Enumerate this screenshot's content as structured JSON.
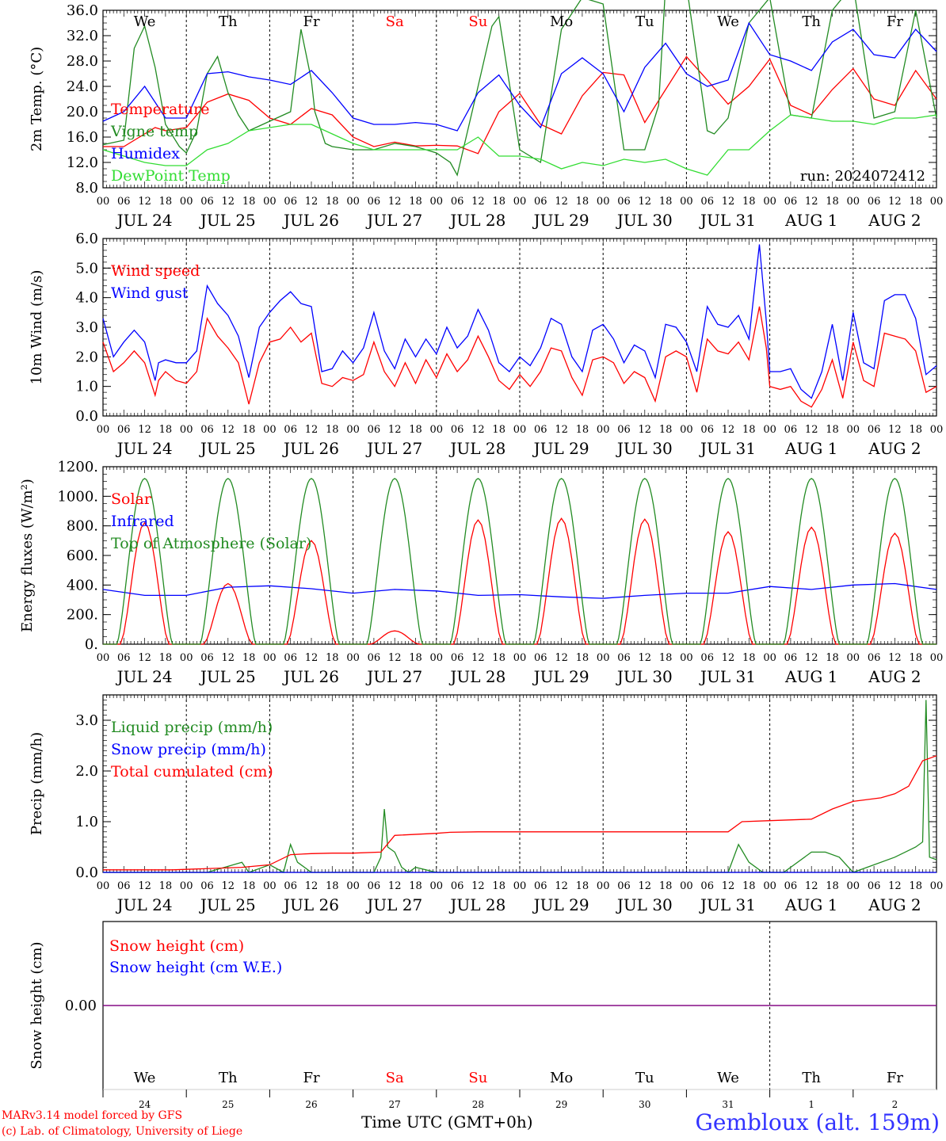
{
  "run_label": "run: 2024072412",
  "dates": [
    "JUL 24",
    "JUL 25",
    "JUL 26",
    "JUL 27",
    "JUL 28",
    "JUL 29",
    "JUL 30",
    "JUL 31",
    "AUG  1",
    "AUG  2"
  ],
  "weekdays": [
    "We",
    "Th",
    "Fr",
    "Sa",
    "Su",
    "Mo",
    "Tu",
    "We",
    "Th",
    "Fr"
  ],
  "weekday_colors": [
    "#000000",
    "#000000",
    "#000000",
    "#ff0000",
    "#ff0000",
    "#000000",
    "#000000",
    "#000000",
    "#000000",
    "#000000"
  ],
  "hour_ticks": [
    "00",
    "06",
    "12",
    "18"
  ],
  "bottom_day_numbers": [
    "24",
    "25",
    "26",
    "27",
    "28",
    "29",
    "30",
    "31",
    "1",
    "2"
  ],
  "footer": {
    "model": "MARv3.14 model forced by GFS",
    "lab": "(c) Lab. of Climatology, University of Liege",
    "x_title": "Time UTC (GMT+0h)",
    "station": "Gembloux (alt. 159m)"
  },
  "colors": {
    "red": "#ff0000",
    "green": "#228b22",
    "blue": "#0000ff",
    "lightgreen": "#33dd33",
    "purple": "#800080"
  },
  "chart_data": [
    {
      "type": "line",
      "ylabel": "2m Temp. (°C)",
      "ylim": [
        8,
        36
      ],
      "yticks": [
        "8.0",
        "12.0",
        "16.0",
        "20.0",
        "24.0",
        "28.0",
        "32.0",
        "36.0"
      ],
      "x_unit": "hours since 2024-07-24 00 UTC",
      "series": [
        {
          "name": "Temperature",
          "color": "red",
          "x": [
            0,
            6,
            12,
            15,
            18,
            24,
            30,
            36,
            42,
            48,
            54,
            60,
            66,
            72,
            78,
            84,
            90,
            96,
            102,
            108,
            114,
            120,
            126,
            132,
            138,
            144,
            150,
            156,
            162,
            168,
            174,
            180,
            186,
            192,
            198,
            204,
            210,
            216,
            222,
            228,
            234,
            240
          ],
          "values": [
            14.5,
            14.5,
            16.5,
            17.5,
            17,
            17.5,
            21.5,
            22.8,
            21.8,
            19,
            18,
            20.5,
            19.5,
            16,
            14.5,
            15.2,
            14.6,
            14.7,
            14.6,
            13.4,
            20,
            22.9,
            18,
            16.5,
            22.5,
            26.2,
            25.8,
            18.3,
            23.5,
            28.7,
            25,
            21.2,
            24,
            28.3,
            21,
            19.5,
            23.5,
            26.8,
            22,
            21,
            26.5,
            22
          ]
        },
        {
          "name": "Vigne temp",
          "color": "green",
          "x": [
            0,
            6,
            9,
            12,
            15,
            18,
            22,
            24,
            27,
            30,
            33,
            36,
            39,
            42,
            48,
            54,
            57,
            60,
            61,
            64,
            66,
            72,
            78,
            84,
            90,
            96,
            100,
            102,
            108,
            112,
            114,
            120,
            126,
            132,
            138,
            144,
            150,
            156,
            160,
            162,
            168,
            174,
            176,
            180,
            186,
            192,
            198,
            204,
            210,
            216,
            222,
            228,
            234,
            240
          ],
          "values": [
            14.8,
            15.5,
            30,
            33.5,
            27,
            18,
            14.5,
            13.5,
            17,
            26,
            28.7,
            23,
            19.5,
            17,
            18.5,
            20,
            33,
            25,
            20,
            15,
            14.5,
            14,
            14,
            15,
            14.5,
            13.5,
            12,
            10,
            24,
            33.5,
            35,
            14,
            12,
            33,
            38,
            37,
            14,
            14,
            21,
            40,
            40,
            17,
            16.5,
            19,
            34,
            38,
            19.5,
            19,
            36,
            40,
            19,
            20,
            36,
            19
          ]
        },
        {
          "name": "Humidex",
          "color": "blue",
          "x": [
            0,
            6,
            12,
            18,
            24,
            30,
            36,
            42,
            48,
            54,
            60,
            66,
            72,
            78,
            84,
            90,
            96,
            102,
            108,
            114,
            120,
            126,
            132,
            138,
            144,
            150,
            156,
            162,
            168,
            174,
            180,
            186,
            192,
            198,
            204,
            210,
            216,
            222,
            228,
            234,
            240
          ],
          "values": [
            18.5,
            20,
            24,
            19,
            19,
            26,
            26.3,
            25.5,
            25,
            24.3,
            26.5,
            23,
            19,
            18,
            18,
            18.3,
            18,
            17,
            23,
            25.8,
            21,
            17.5,
            26,
            28.5,
            26,
            20,
            27,
            30.8,
            26,
            24,
            25,
            34,
            29,
            28,
            26.5,
            31,
            33,
            29,
            28.5,
            33,
            29.5
          ]
        },
        {
          "name": "DewPoint Temp",
          "color": "lightgreen",
          "x": [
            0,
            6,
            12,
            18,
            24,
            30,
            36,
            42,
            48,
            54,
            60,
            66,
            72,
            78,
            84,
            90,
            96,
            102,
            108,
            114,
            120,
            126,
            132,
            138,
            144,
            150,
            156,
            162,
            168,
            174,
            180,
            186,
            192,
            198,
            204,
            210,
            216,
            222,
            228,
            234,
            240
          ],
          "values": [
            14,
            13,
            12,
            11.5,
            11.5,
            14,
            15,
            17,
            17.5,
            18,
            18,
            16.5,
            15,
            14,
            14,
            14,
            14,
            14,
            16,
            13,
            13,
            12.5,
            11,
            12,
            11.5,
            12.5,
            12,
            12.5,
            11,
            10,
            14,
            14,
            17,
            19.5,
            19,
            18.5,
            18.5,
            18,
            19,
            19,
            19.5
          ]
        }
      ]
    },
    {
      "type": "line",
      "ylabel": "10m Wind (m/s)",
      "ylim": [
        0,
        6
      ],
      "yticks": [
        "0.0",
        "1.0",
        "2.0",
        "3.0",
        "4.0",
        "5.0",
        "6.0"
      ],
      "x_unit": "hours since 2024-07-24 00 UTC",
      "series": [
        {
          "name": "Wind speed",
          "color": "red",
          "x": [
            0,
            3,
            6,
            9,
            12,
            15,
            16,
            18,
            21,
            24,
            27,
            30,
            33,
            36,
            39,
            42,
            45,
            48,
            51,
            54,
            57,
            60,
            63,
            66,
            69,
            72,
            75,
            78,
            81,
            84,
            87,
            90,
            93,
            96,
            99,
            102,
            105,
            108,
            111,
            114,
            117,
            120,
            123,
            126,
            129,
            132,
            135,
            138,
            141,
            144,
            147,
            150,
            153,
            156,
            159,
            162,
            165,
            168,
            171,
            174,
            177,
            180,
            183,
            186,
            189,
            191,
            192,
            195,
            198,
            201,
            204,
            207,
            210,
            213,
            216,
            219,
            222,
            225,
            228,
            231,
            234,
            237,
            240
          ],
          "values": [
            2.5,
            1.5,
            1.8,
            2.2,
            1.8,
            0.7,
            1.2,
            1.5,
            1.2,
            1.1,
            1.5,
            3.3,
            2.7,
            2.3,
            1.8,
            0.4,
            1.8,
            2.5,
            2.6,
            3,
            2.5,
            2.8,
            1.1,
            1,
            1.3,
            1.2,
            1.4,
            2.5,
            1.5,
            1,
            1.8,
            1.1,
            1.9,
            1.3,
            2.1,
            1.5,
            1.9,
            2.7,
            2,
            1.2,
            0.9,
            1.4,
            1,
            1.5,
            2.3,
            2.2,
            1.3,
            0.7,
            1.9,
            2,
            1.8,
            1.1,
            1.5,
            1.3,
            0.5,
            2,
            2.2,
            2,
            0.8,
            2.6,
            2.2,
            2.1,
            2.5,
            1.9,
            3.7,
            2.3,
            1,
            0.9,
            1,
            0.5,
            0.3,
            0.9,
            1.9,
            0.6,
            2.5,
            1.2,
            1,
            2.8,
            2.7,
            2.6,
            2.2,
            0.8,
            1
          ]
        },
        {
          "name": "Wind gust",
          "color": "blue",
          "x": [
            0,
            3,
            6,
            9,
            12,
            15,
            16,
            18,
            21,
            24,
            27,
            30,
            33,
            36,
            39,
            42,
            45,
            48,
            51,
            54,
            57,
            60,
            63,
            66,
            69,
            72,
            75,
            78,
            81,
            84,
            87,
            90,
            93,
            96,
            99,
            102,
            105,
            108,
            111,
            114,
            117,
            120,
            123,
            126,
            129,
            132,
            135,
            138,
            141,
            144,
            147,
            150,
            153,
            156,
            159,
            162,
            165,
            168,
            171,
            174,
            177,
            180,
            183,
            186,
            189,
            191,
            192,
            195,
            198,
            201,
            204,
            207,
            210,
            213,
            216,
            219,
            222,
            225,
            228,
            231,
            234,
            237,
            240
          ],
          "values": [
            3.3,
            2,
            2.5,
            2.9,
            2.5,
            1.2,
            1.8,
            1.9,
            1.8,
            1.8,
            2.2,
            4.4,
            3.8,
            3.4,
            2.7,
            1.3,
            3,
            3.5,
            3.9,
            4.2,
            3.8,
            3.7,
            1.5,
            1.6,
            2.2,
            1.8,
            2.3,
            3.5,
            2.2,
            1.6,
            2.6,
            2,
            2.6,
            2.1,
            3,
            2.3,
            2.7,
            3.6,
            2.9,
            1.8,
            1.5,
            2,
            1.7,
            2.3,
            3.3,
            3.1,
            2,
            1.5,
            2.9,
            3.1,
            2.6,
            1.8,
            2.4,
            2.2,
            1.3,
            3.1,
            3,
            2.5,
            1.5,
            3.7,
            3.1,
            3,
            3.4,
            2.6,
            5.8,
            3.2,
            1.5,
            1.5,
            1.6,
            0.9,
            0.6,
            1.5,
            3.1,
            1.2,
            3.5,
            1.8,
            1.6,
            3.9,
            4.1,
            4.1,
            3.3,
            1.4,
            1.7
          ]
        }
      ],
      "reference_line": 5
    },
    {
      "type": "line",
      "ylabel": "Energy fluxes (W/m²)",
      "ylim": [
        0,
        1200
      ],
      "yticks": [
        "0.",
        "200.",
        "400.",
        "600.",
        "800.",
        "1000.",
        "1200."
      ],
      "x_unit": "hours since 2024-07-24 00 UTC",
      "series": [
        {
          "name": "Solar",
          "color": "red",
          "peaks": [
            820,
            410,
            700,
            90,
            840,
            850,
            845,
            760,
            790,
            750
          ]
        },
        {
          "name": "Infrared",
          "color": "blue",
          "x": [
            0,
            12,
            24,
            36,
            48,
            60,
            72,
            84,
            96,
            108,
            120,
            132,
            144,
            156,
            168,
            180,
            192,
            204,
            216,
            228,
            240
          ],
          "values": [
            370,
            330,
            330,
            385,
            395,
            375,
            345,
            370,
            360,
            330,
            335,
            320,
            310,
            330,
            345,
            345,
            390,
            370,
            400,
            410,
            370
          ]
        },
        {
          "name": "Top of Atmosphere (Solar)",
          "color": "green",
          "daily_peak": 1120
        }
      ]
    },
    {
      "type": "line",
      "ylabel": "Precip (mm/h)",
      "ylim": [
        0,
        3.5
      ],
      "yticks": [
        "0.0",
        "1.0",
        "2.0",
        "3.0"
      ],
      "x_unit": "hours since 2024-07-24 00 UTC",
      "series": [
        {
          "name": "Liquid precip (mm/h)",
          "color": "green",
          "x": [
            0,
            30,
            40,
            42,
            48,
            52,
            54,
            56,
            60,
            66,
            72,
            78,
            80,
            81,
            82,
            84,
            86,
            88,
            90,
            96,
            120,
            180,
            183,
            186,
            190,
            196,
            204,
            208,
            212,
            216,
            220,
            228,
            234,
            236,
            237,
            238,
            240
          ],
          "values": [
            0,
            0,
            0.2,
            0,
            0.15,
            0,
            0.55,
            0.2,
            0,
            0,
            0,
            0,
            0.3,
            1.25,
            0.5,
            0.4,
            0.1,
            0,
            0.1,
            0,
            0,
            0,
            0.55,
            0.2,
            0,
            0,
            0.4,
            0.4,
            0.3,
            0,
            0.1,
            0.3,
            0.5,
            0.6,
            3.4,
            0.3,
            0.25
          ]
        },
        {
          "name": "Snow precip (mm/h)",
          "color": "blue",
          "x": [
            0,
            240
          ],
          "values": [
            0,
            0
          ]
        },
        {
          "name": "Total cumulated (cm)",
          "color": "red",
          "x": [
            0,
            20,
            40,
            48,
            54,
            60,
            66,
            72,
            80,
            84,
            96,
            100,
            108,
            120,
            180,
            184,
            192,
            204,
            210,
            216,
            224,
            228,
            232,
            236,
            240
          ],
          "values": [
            0.05,
            0.05,
            0.1,
            0.15,
            0.35,
            0.37,
            0.38,
            0.38,
            0.4,
            0.73,
            0.77,
            0.79,
            0.8,
            0.8,
            0.8,
            1,
            1.02,
            1.05,
            1.25,
            1.4,
            1.47,
            1.55,
            1.7,
            2.2,
            2.3
          ]
        }
      ]
    },
    {
      "type": "line",
      "ylabel": "Snow height (cm)",
      "yticks": [
        "0.00"
      ],
      "series": [
        {
          "name": "Snow height (cm)",
          "color": "red",
          "values": [
            0,
            0
          ]
        },
        {
          "name": "Snow height (cm W.E.)",
          "color": "blue",
          "values": [
            0,
            0
          ]
        }
      ]
    }
  ]
}
